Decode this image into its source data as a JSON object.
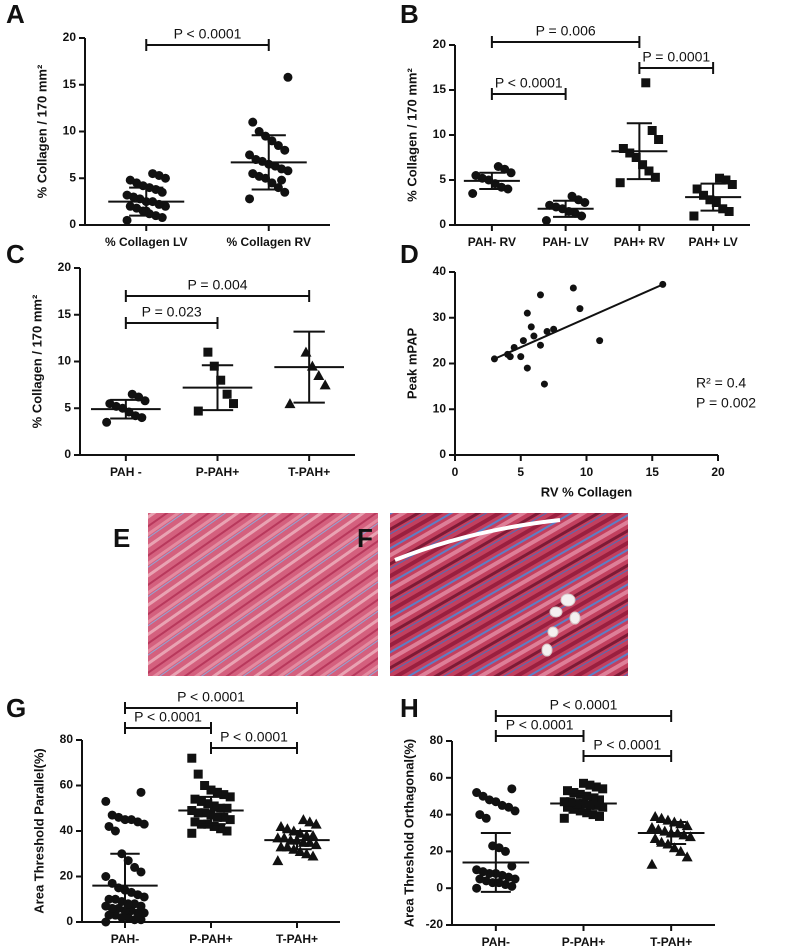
{
  "chart_data": [
    {
      "type": "dotplot",
      "panel": "A",
      "ylabel": "% Collagen / 170 mm²",
      "categories": [
        "% Collagen LV",
        "% Collagen RV"
      ],
      "markers": [
        "circle",
        "circle"
      ],
      "points": [
        [
          0.5,
          0.8,
          1.0,
          1.2,
          1.5,
          1.8,
          2.0,
          2.0,
          2.2,
          2.5,
          2.5,
          2.8,
          3.0,
          3.2,
          3.5,
          3.8,
          4.0,
          4.2,
          4.5,
          4.8,
          5.0,
          5.3,
          5.5,
          1.5
        ],
        [
          2.8,
          3.5,
          4.0,
          4.5,
          5.0,
          5.2,
          5.5,
          5.8,
          6.0,
          6.3,
          6.5,
          6.8,
          7.0,
          7.5,
          8.0,
          8.5,
          9.0,
          9.5,
          10.0,
          11.0,
          15.8,
          4.8
        ]
      ],
      "means": [
        2.5,
        6.7
      ],
      "sd": [
        1.5,
        2.9
      ],
      "ylim": [
        0,
        20
      ],
      "yticks": [
        0,
        5,
        10,
        15,
        20
      ],
      "comparisons": [
        {
          "from": 0,
          "to": 1,
          "label": "P < 0.0001"
        }
      ]
    },
    {
      "type": "dotplot",
      "panel": "B",
      "ylabel": "% Collagen / 170 mm²",
      "categories": [
        "PAH-  RV",
        "PAH- LV",
        "PAH+ RV",
        "PAH+ LV"
      ],
      "markers": [
        "circle",
        "circle",
        "square",
        "square"
      ],
      "points": [
        [
          3.5,
          4.0,
          4.2,
          4.6,
          5.0,
          5.2,
          5.5,
          5.8,
          6.2,
          6.5
        ],
        [
          0.5,
          1.0,
          1.3,
          1.5,
          1.8,
          2.0,
          2.2,
          2.5,
          2.8,
          3.2
        ],
        [
          4.7,
          5.3,
          6.0,
          6.7,
          7.5,
          8.0,
          8.5,
          9.5,
          10.5,
          15.8
        ],
        [
          1.0,
          1.5,
          1.8,
          2.5,
          2.8,
          3.3,
          4.0,
          4.5,
          5.0,
          5.2
        ]
      ],
      "means": [
        4.9,
        1.8,
        8.2,
        3.1
      ],
      "sd": [
        0.9,
        0.9,
        3.1,
        1.5
      ],
      "ylim": [
        0,
        20
      ],
      "yticks": [
        0,
        5,
        10,
        15,
        20
      ],
      "comparisons": [
        {
          "from": 0,
          "to": 2,
          "label": "P = 0.006"
        },
        {
          "from": 2,
          "to": 3,
          "label": "P = 0.0001"
        },
        {
          "from": 0,
          "to": 1,
          "label": "P < 0.0001"
        }
      ]
    },
    {
      "type": "dotplot",
      "panel": "C",
      "ylabel": "% Collagen / 170 mm²",
      "categories": [
        "PAH -",
        "P-PAH+",
        "T-PAH+"
      ],
      "markers": [
        "circle",
        "square",
        "triangle"
      ],
      "points": [
        [
          3.5,
          4.0,
          4.2,
          4.6,
          5.0,
          5.2,
          5.5,
          5.8,
          6.2,
          6.5
        ],
        [
          4.7,
          5.5,
          6.5,
          8.0,
          9.5,
          11.0
        ],
        [
          5.5,
          7.5,
          8.5,
          9.5,
          11.0
        ]
      ],
      "means": [
        4.9,
        7.2,
        9.4
      ],
      "sd": [
        1.0,
        2.4,
        3.8
      ],
      "ylim": [
        0,
        20
      ],
      "yticks": [
        0,
        5,
        10,
        15,
        20
      ],
      "comparisons": [
        {
          "from": 0,
          "to": 2,
          "label": "P = 0.004"
        },
        {
          "from": 0,
          "to": 1,
          "label": "P = 0.023"
        }
      ]
    },
    {
      "type": "scatter",
      "panel": "D",
      "xlabel": "RV % Collagen",
      "ylabel": "Peak mPAP",
      "x": [
        3,
        4,
        4.2,
        4.5,
        5,
        5.2,
        5.5,
        5.5,
        5.8,
        6,
        6.5,
        6.8,
        7,
        7.5,
        9,
        9.5,
        11,
        15.8,
        6.5
      ],
      "y": [
        21,
        22,
        21.5,
        23.5,
        21.5,
        25,
        31,
        19,
        28,
        26,
        35,
        15.5,
        27,
        27.5,
        36.5,
        32,
        25,
        37.3,
        24
      ],
      "trendline": {
        "slope": 1.27,
        "intercept": 17.2
      },
      "annotations": [
        "R² = 0.4",
        "P = 0.002"
      ],
      "xlim": [
        0,
        20
      ],
      "xticks": [
        0,
        5,
        10,
        15,
        20
      ],
      "ylim": [
        0,
        40
      ],
      "yticks": [
        0,
        10,
        20,
        30,
        40
      ]
    },
    {
      "type": "dotplot",
      "panel": "G",
      "ylabel": "Area Threshold Parallel(%)",
      "categories": [
        "PAH-",
        "P-PAH+",
        "T-PAH+"
      ],
      "markers": [
        "circle",
        "square",
        "triangle"
      ],
      "points": [
        [
          0,
          1,
          1,
          2,
          2,
          3,
          3,
          4,
          4,
          5,
          5,
          6,
          6,
          7,
          7,
          8,
          8,
          9,
          10,
          10,
          11,
          12,
          13,
          14,
          15,
          17,
          20,
          22,
          24,
          27,
          30,
          40,
          42,
          43,
          44,
          45,
          45,
          46,
          47,
          53,
          57
        ],
        [
          39,
          40,
          41,
          42,
          43,
          43,
          44,
          45,
          46,
          46,
          47,
          48,
          48,
          49,
          50,
          50,
          51,
          52,
          53,
          54,
          55,
          56,
          57,
          58,
          60,
          65,
          72
        ],
        [
          27,
          29,
          30,
          31,
          32,
          33,
          33,
          34,
          35,
          35,
          36,
          36,
          37,
          37,
          38,
          38,
          39,
          40,
          41,
          42,
          43,
          44,
          45
        ]
      ],
      "means": [
        16,
        49,
        36
      ],
      "sd": [
        14,
        6,
        4
      ],
      "ylim": [
        0,
        80
      ],
      "yticks": [
        0,
        20,
        40,
        60,
        80
      ],
      "comparisons": [
        {
          "from": 0,
          "to": 2,
          "label": "P < 0.0001"
        },
        {
          "from": 0,
          "to": 1,
          "label": "P < 0.0001"
        },
        {
          "from": 1,
          "to": 2,
          "label": "P < 0.0001"
        }
      ]
    },
    {
      "type": "dotplot",
      "panel": "H",
      "ylabel": "Area Threshold Orthagonal(%)",
      "categories": [
        "PAH-",
        "P-PAH+",
        "T-PAH+"
      ],
      "markers": [
        "circle",
        "square",
        "triangle"
      ],
      "points": [
        [
          0,
          1,
          2,
          3,
          3,
          4,
          5,
          5,
          6,
          7,
          8,
          8,
          9,
          10,
          12,
          20,
          22,
          23,
          38,
          40,
          42,
          44,
          45,
          47,
          48,
          50,
          52,
          54
        ],
        [
          38,
          39,
          40,
          41,
          42,
          43,
          44,
          44,
          45,
          45,
          46,
          46,
          47,
          47,
          48,
          49,
          50,
          51,
          52,
          53,
          54,
          55,
          56,
          57
        ],
        [
          13,
          17,
          20,
          22,
          24,
          25,
          27,
          28,
          29,
          30,
          30,
          31,
          32,
          33,
          34,
          35,
          36,
          37,
          38,
          39
        ]
      ],
      "means": [
        14,
        46,
        30
      ],
      "sd": [
        16,
        5,
        6
      ],
      "ylim": [
        -20,
        80
      ],
      "yticks": [
        -20,
        0,
        20,
        40,
        60,
        80
      ],
      "comparisons": [
        {
          "from": 0,
          "to": 2,
          "label": "P < 0.0001"
        },
        {
          "from": 0,
          "to": 1,
          "label": "P < 0.0001"
        },
        {
          "from": 1,
          "to": 2,
          "label": "P < 0.0001"
        }
      ]
    }
  ],
  "images": [
    {
      "panel": "E"
    },
    {
      "panel": "F"
    }
  ]
}
